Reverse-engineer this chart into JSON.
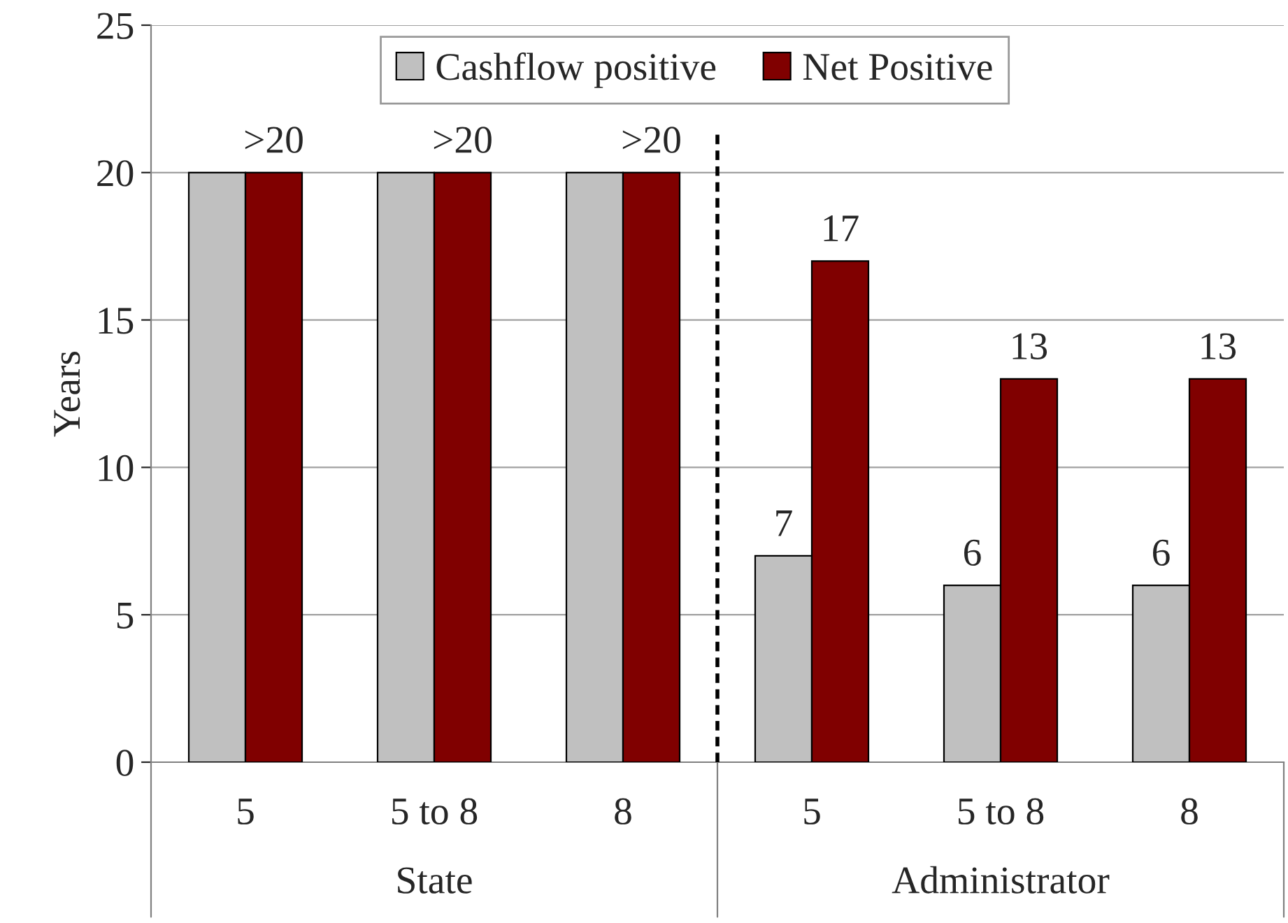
{
  "chart_data": {
    "type": "bar",
    "ylabel": "Years",
    "categories": [
      "5",
      "5 to 8",
      "8",
      "5",
      "5 to 8",
      "8"
    ],
    "series": [
      {
        "name": "Cashflow positive",
        "color": "#c0c0c0",
        "values": [
          20,
          20,
          20,
          7,
          6,
          6
        ],
        "value_labels": [
          null,
          null,
          null,
          "7",
          "6",
          "6"
        ]
      },
      {
        "name": "Net Positive",
        "color": "#800000",
        "values": [
          20,
          20,
          20,
          17,
          13,
          13
        ],
        "value_labels": [
          ">20",
          ">20",
          ">20",
          "17",
          "13",
          "13"
        ]
      }
    ],
    "annotations": [
      "State",
      "Administrator"
    ],
    "ylim": [
      0,
      25
    ],
    "yticks": [
      0,
      5,
      10,
      15,
      20,
      25
    ],
    "grid": "y",
    "legend": "top"
  }
}
